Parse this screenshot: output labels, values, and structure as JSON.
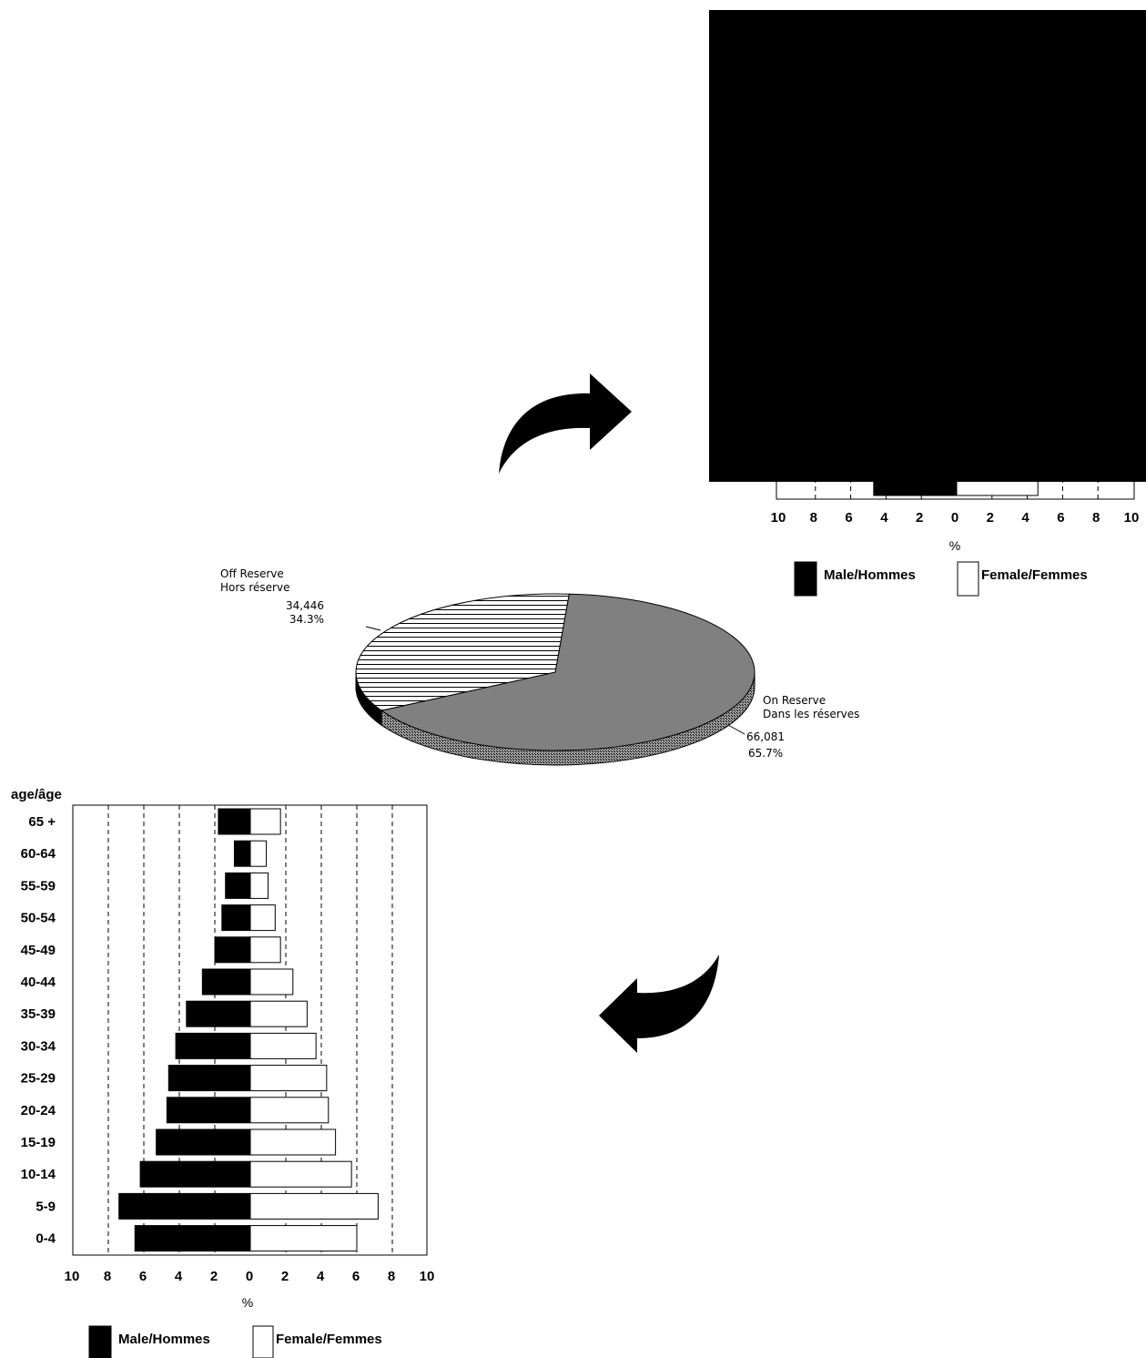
{
  "colors": {
    "male": "#000000",
    "female": "#ffffff",
    "on_reserve": "#808080",
    "background": "#ffffff"
  },
  "icons": {
    "arrow_top": "curved-arrow-right-icon",
    "arrow_bottom": "curved-arrow-left-icon"
  },
  "chart_data": [
    {
      "type": "pie",
      "title": "",
      "slices": [
        {
          "label_line1": "Off Reserve",
          "label_line2": "Hors réserve",
          "value_label": "34,446",
          "percent_label": "34.3%",
          "value": 34446,
          "percent": 34.3
        },
        {
          "label_line1": "On Reserve",
          "label_line2": "Dans les réserves",
          "value_label": "66,081",
          "percent_label": "65.7%",
          "value": 66081,
          "percent": 65.7
        }
      ]
    },
    {
      "type": "bar",
      "orientation": "horizontal-pyramid",
      "ylabel": "age/âge",
      "xlabel": "%",
      "xlim": [
        -10,
        10
      ],
      "x_ticks": [
        "10",
        "8",
        "6",
        "4",
        "2",
        "0",
        "2",
        "4",
        "6",
        "8",
        "10"
      ],
      "categories": [
        "65 +",
        "60-64",
        "55-59",
        "50-54",
        "45-49",
        "40-44",
        "35-39",
        "30-34",
        "25-29",
        "20-24",
        "15-19",
        "10-14",
        "5-9",
        "0-4"
      ],
      "series": [
        {
          "name": "Male/Hommes",
          "values": [
            1.8,
            0.9,
            1.4,
            1.6,
            2.0,
            2.7,
            3.6,
            4.2,
            4.6,
            4.7,
            5.3,
            6.2,
            7.4,
            6.5
          ]
        },
        {
          "name": "Female/Femmes",
          "values": [
            1.7,
            0.9,
            1.0,
            1.4,
            1.7,
            2.4,
            3.2,
            3.7,
            4.3,
            4.4,
            4.8,
            5.7,
            7.2,
            6.0
          ]
        }
      ],
      "grid": "dashed vertical",
      "legend": "bottom"
    },
    {
      "type": "bar",
      "orientation": "horizontal-pyramid",
      "note": "partially obscured",
      "xlabel": "%",
      "xlim": [
        -10,
        10
      ],
      "x_ticks": [
        "10",
        "8",
        "6",
        "4",
        "2",
        "0",
        "2",
        "4",
        "6",
        "8",
        "10"
      ],
      "series": [
        {
          "name": "Male/Hommes",
          "values": [
            4.7
          ]
        },
        {
          "name": "Female/Femmes",
          "values": [
            4.6
          ]
        }
      ],
      "legend": "bottom"
    }
  ]
}
